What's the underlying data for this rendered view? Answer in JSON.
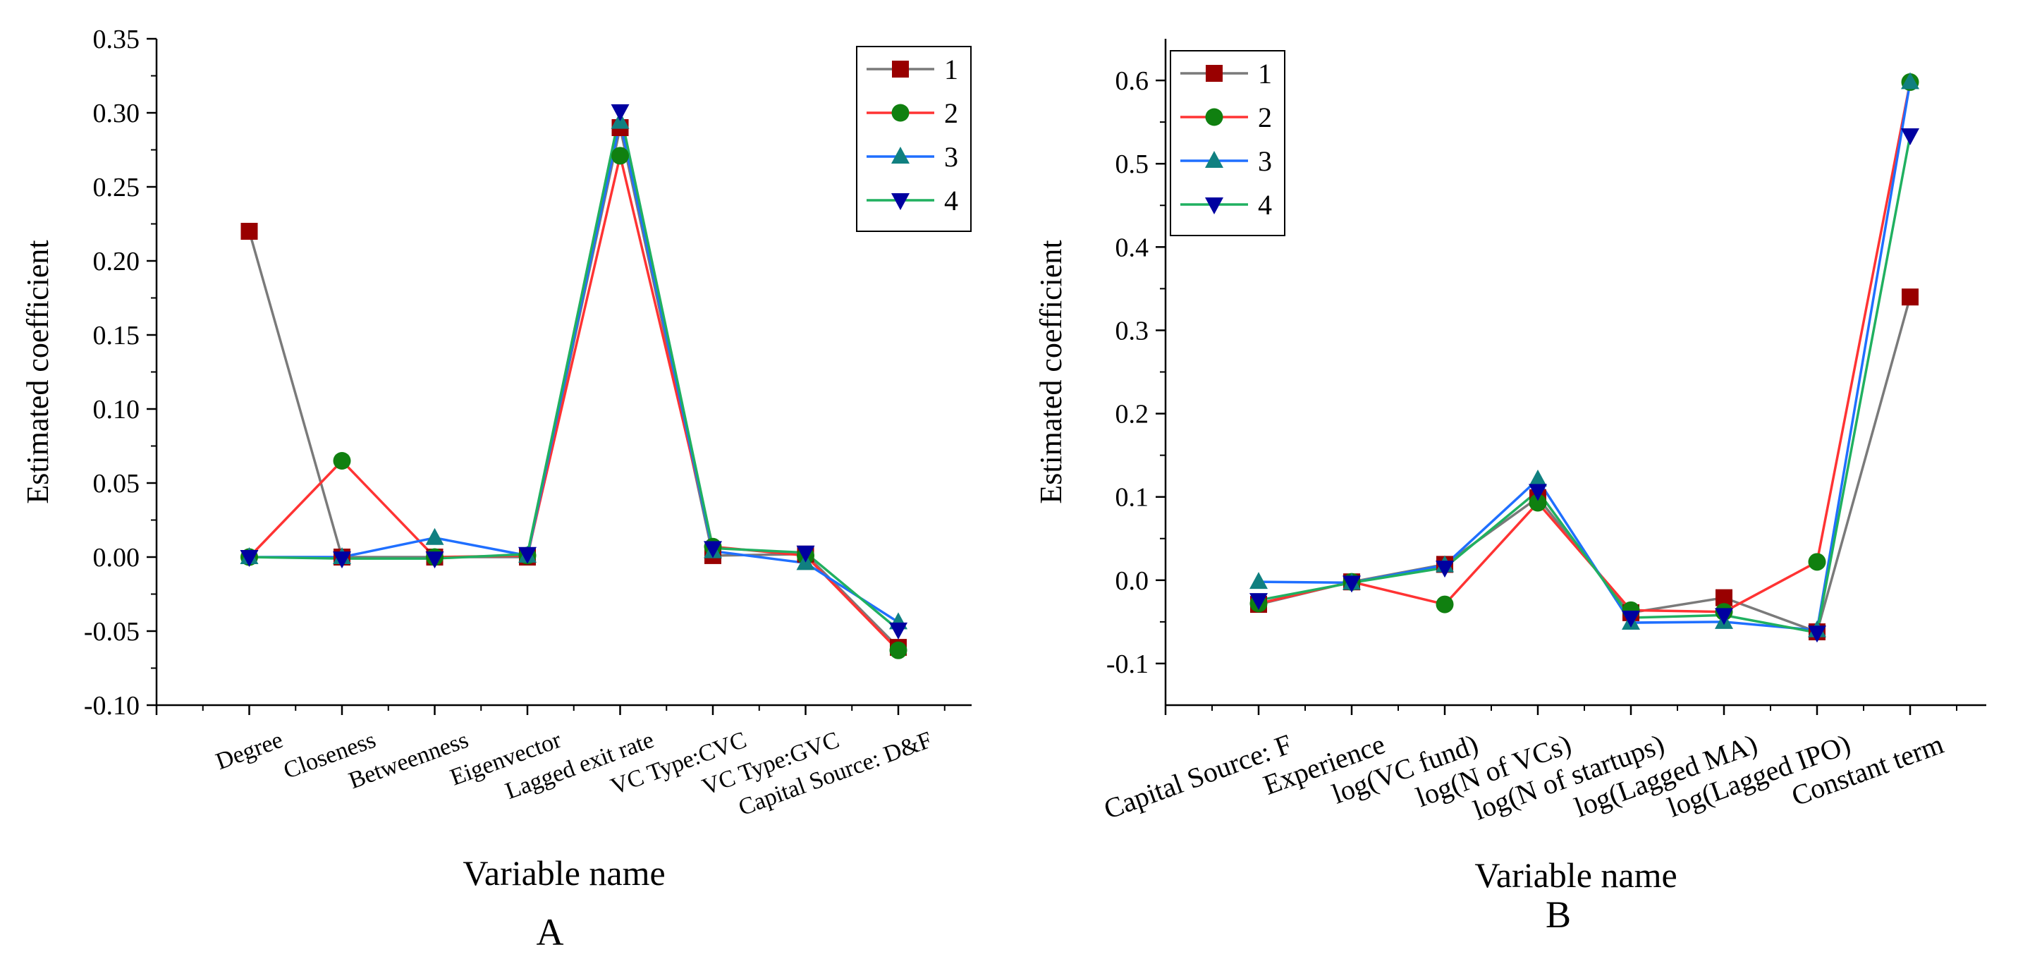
{
  "colors": {
    "series1_line": "#7a7a7a",
    "series1_marker": "#990000",
    "series2_line": "#ff3333",
    "series2_marker": "#108010",
    "series3_line": "#1f6fff",
    "series3_marker": "#108080",
    "series4_line": "#20b060",
    "series4_marker": "#0000a0"
  },
  "chart_data": [
    {
      "type": "line",
      "panel_label": "A",
      "xlabel": "Variable name",
      "ylabel": "Estimated coefficient",
      "ylim": [
        -0.1,
        0.35
      ],
      "yticks": [
        "-0.10",
        "-0.05",
        "0.00",
        "0.05",
        "0.10",
        "0.15",
        "0.20",
        "0.25",
        "0.30",
        "0.35"
      ],
      "categories": [
        "Degree",
        "Closeness",
        "Betweenness",
        "Eigenvector",
        "Lagged exit rate",
        "VC Type:CVC",
        "VC Type:GVC",
        "Capital Source: D&F"
      ],
      "legend_position": "top-right",
      "series": [
        {
          "name": "1",
          "marker": "square",
          "values": [
            0.22,
            0.0,
            0.0,
            0.0,
            0.29,
            0.001,
            0.002,
            -0.061
          ]
        },
        {
          "name": "2",
          "marker": "circle",
          "values": [
            0.0,
            0.065,
            0.0,
            0.001,
            0.271,
            0.007,
            0.001,
            -0.063
          ]
        },
        {
          "name": "3",
          "marker": "triangle-up",
          "values": [
            0.0,
            0.0,
            0.013,
            0.001,
            0.294,
            0.004,
            -0.004,
            -0.044
          ]
        },
        {
          "name": "4",
          "marker": "triangle-down",
          "values": [
            0.0,
            -0.001,
            -0.001,
            0.002,
            0.301,
            0.006,
            0.003,
            -0.049
          ]
        }
      ]
    },
    {
      "type": "line",
      "panel_label": "B",
      "xlabel": "Variable name",
      "ylabel": "Estimated coefficient",
      "ylim": [
        -0.15,
        0.65
      ],
      "yticks": [
        "-0.1",
        "0.0",
        "0.1",
        "0.2",
        "0.3",
        "0.4",
        "0.5",
        "0.6"
      ],
      "categories": [
        "Capital Source: F",
        "Experience",
        "log(VC fund)",
        "log(N of VCs)",
        "log(N of startups)",
        "log(Lagged MA)",
        "log(Lagged IPO)",
        "Constant term"
      ],
      "legend_position": "top-left",
      "series": [
        {
          "name": "1",
          "marker": "square",
          "values": [
            -0.029,
            -0.002,
            0.019,
            0.099,
            -0.039,
            -0.021,
            -0.062,
            0.34
          ]
        },
        {
          "name": "2",
          "marker": "circle",
          "values": [
            -0.028,
            -0.002,
            -0.029,
            0.093,
            -0.036,
            -0.038,
            0.022,
            0.598
          ]
        },
        {
          "name": "3",
          "marker": "triangle-up",
          "values": [
            -0.002,
            -0.003,
            0.018,
            0.121,
            -0.051,
            -0.05,
            -0.06,
            0.598
          ]
        },
        {
          "name": "4",
          "marker": "triangle-down",
          "values": [
            -0.024,
            -0.003,
            0.015,
            0.107,
            -0.045,
            -0.042,
            -0.063,
            0.534
          ]
        }
      ]
    }
  ]
}
